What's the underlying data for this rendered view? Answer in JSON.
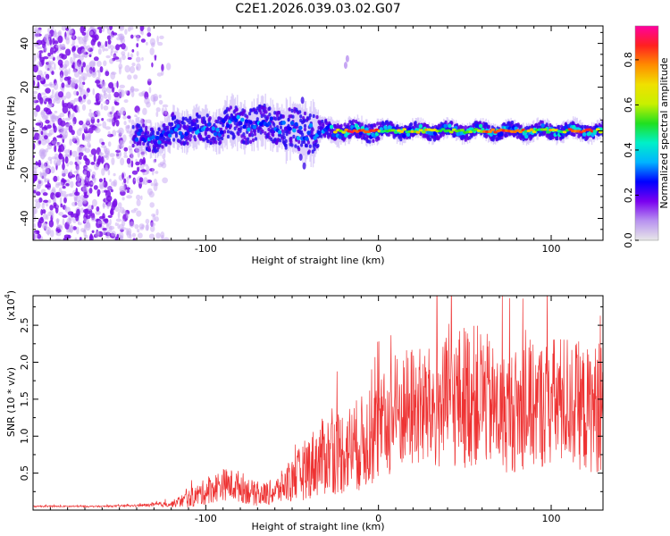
{
  "title": "C2E1.2026.039.03.02.G07",
  "chart_data": [
    {
      "type": "heatmap",
      "xlabel": "Height of straight line (km)",
      "ylabel": "Frequency (Hz)",
      "xlim": [
        -200,
        130
      ],
      "ylim": [
        -50,
        48
      ],
      "xticks": [
        -100,
        0,
        100
      ],
      "xtick_labels": [
        "-100",
        "0",
        "100"
      ],
      "yticks": [
        -40,
        -20,
        0,
        20,
        40
      ],
      "ytick_labels": [
        "-40",
        "-20",
        "0",
        "20",
        "40"
      ],
      "colorbar": {
        "label": "Normalized spectral amplitude",
        "range": [
          0,
          0.95
        ],
        "ticks": [
          0.0,
          0.2,
          0.4,
          0.6,
          0.8
        ],
        "tick_labels": [
          "0.0",
          "0.2",
          "0.4",
          "0.6",
          "0.8"
        ],
        "colors": [
          "#e8e8e8",
          "#b892f0",
          "#7a00f0",
          "#0000ff",
          "#00b4ff",
          "#00f0c8",
          "#20e020",
          "#c8f000",
          "#f0e000",
          "#ff8c00",
          "#ff2020",
          "#ff00a0"
        ]
      },
      "background_noise": {
        "x_range": [
          -200,
          -120
        ],
        "y_range": [
          -50,
          48
        ]
      },
      "trace_segments": [
        {
          "x_range": [
            -142,
            -120
          ],
          "center_hz": -3,
          "halfwidth_hz": 7
        },
        {
          "x_range": [
            -120,
            -90
          ],
          "center_hz": 1,
          "halfwidth_hz": 8
        },
        {
          "x_range": [
            -90,
            -55
          ],
          "center_hz": 3,
          "halfwidth_hz": 10
        },
        {
          "x_range": [
            -55,
            -35
          ],
          "center_hz": 0,
          "halfwidth_hz": 12
        },
        {
          "x_range": [
            -35,
            0
          ],
          "center_hz": 0,
          "halfwidth_hz": 5
        },
        {
          "x_range": [
            0,
            130
          ],
          "center_hz": 0,
          "halfwidth_hz": 4
        }
      ],
      "peak_band": {
        "x_range": [
          -25,
          130
        ],
        "center_hz": 0,
        "max_amplitude": 0.9
      }
    },
    {
      "type": "line",
      "xlabel": "Height of straight line (km)",
      "ylabel": "SNR (10 * v/v)",
      "y_multiplier": "(x10",
      "y_multiplier_exp": "4",
      "y_multiplier_close": ")",
      "xlim": [
        -200,
        130
      ],
      "ylim": [
        0,
        29000
      ],
      "xticks": [
        -100,
        0,
        100
      ],
      "xtick_labels": [
        "-100",
        "0",
        "100"
      ],
      "yticks": [
        5000,
        10000,
        15000,
        20000,
        25000
      ],
      "ytick_labels": [
        "0.5",
        "1.0",
        "1.5",
        "2.0",
        "2.5"
      ],
      "color": "#ee3333",
      "series": [
        {
          "name": "SNR",
          "x": [
            -200,
            -180,
            -160,
            -140,
            -120,
            -110,
            -100,
            -90,
            -80,
            -70,
            -60,
            -50,
            -40,
            -30,
            -20,
            -10,
            0,
            10,
            20,
            30,
            40,
            50,
            60,
            70,
            80,
            90,
            100,
            110,
            120,
            130
          ],
          "y": [
            500,
            500,
            500,
            600,
            800,
            1500,
            2500,
            3500,
            3200,
            2000,
            2500,
            4000,
            6000,
            7500,
            8000,
            9000,
            10500,
            13000,
            14000,
            13500,
            14500,
            15500,
            15500,
            13000,
            13500,
            14000,
            14500,
            15000,
            13500,
            14000
          ],
          "noise_amp": [
            100,
            100,
            100,
            150,
            400,
            1200,
            1800,
            2200,
            2200,
            1500,
            1800,
            3000,
            4500,
            5500,
            6000,
            6500,
            7000,
            8000,
            8500,
            8500,
            9000,
            10000,
            9500,
            8000,
            8500,
            8500,
            9000,
            9000,
            8500,
            9000
          ]
        }
      ]
    }
  ]
}
